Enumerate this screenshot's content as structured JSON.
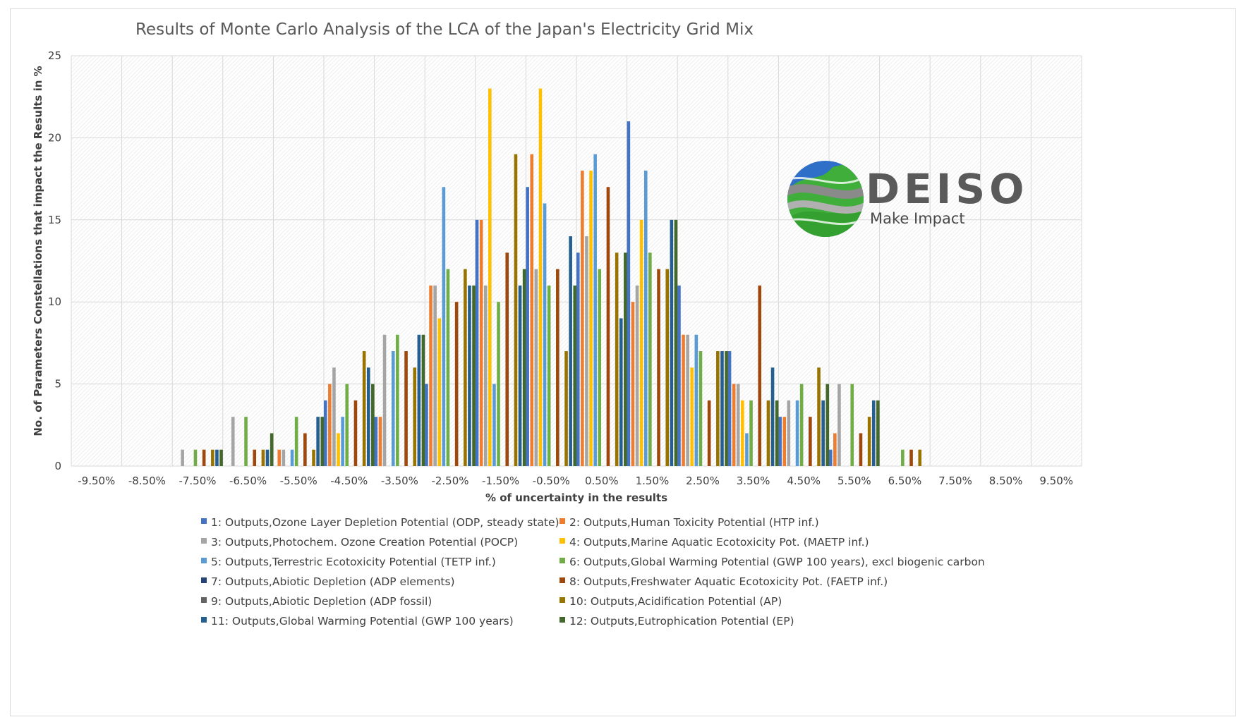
{
  "chart_data": {
    "type": "bar",
    "title": "Results of Monte Carlo Analysis of the LCA of the Japan's Electricity Grid Mix",
    "xlabel": "% of uncertainty in the results",
    "ylabel": "No. of Parameters Constellations that impact the Results in %",
    "ylim": [
      0,
      25
    ],
    "yticks": [
      "0",
      "5",
      "10",
      "15",
      "20",
      "25"
    ],
    "grid": true,
    "legend_position": "bottom",
    "categories": [
      "-9.50%",
      "-8.50%",
      "-7.50%",
      "-6.50%",
      "-5.50%",
      "-4.50%",
      "-3.50%",
      "-2.50%",
      "-1.50%",
      "-0.50%",
      "0.50%",
      "1.50%",
      "2.50%",
      "3.50%",
      "4.50%",
      "5.50%",
      "6.50%",
      "7.50%",
      "8.50%",
      "9.50%"
    ],
    "series": [
      {
        "name": "1: Outputs,Ozone Layer Depletion Potential (ODP, steady state)",
        "color": "#4472C4",
        "values": [
          0,
          0,
          0,
          0,
          0,
          4,
          3,
          5,
          15,
          17,
          13,
          21,
          11,
          7,
          3,
          1,
          0,
          0,
          0,
          0
        ]
      },
      {
        "name": "2: Outputs,Human Toxicity Potential (HTP inf.)",
        "color": "#ED7D31",
        "values": [
          0,
          0,
          0,
          0,
          1,
          5,
          3,
          11,
          15,
          19,
          18,
          10,
          8,
          5,
          3,
          2,
          0,
          0,
          0,
          0
        ]
      },
      {
        "name": "3: Outputs,Photochem. Ozone Creation Potential (POCP)",
        "color": "#A5A5A5",
        "values": [
          0,
          0,
          1,
          3,
          1,
          6,
          8,
          11,
          11,
          12,
          14,
          11,
          8,
          5,
          4,
          5,
          0,
          0,
          0,
          0
        ]
      },
      {
        "name": "4: Outputs,Marine Aquatic Ecotoxicity Pot. (MAETP inf.)",
        "color": "#FFC000",
        "values": [
          0,
          0,
          0,
          0,
          0,
          2,
          0,
          9,
          23,
          23,
          18,
          15,
          6,
          4,
          0,
          0,
          0,
          0,
          0,
          0
        ]
      },
      {
        "name": "5: Outputs,Terrestric Ecotoxicity Potential (TETP inf.)",
        "color": "#5B9BD5",
        "values": [
          0,
          0,
          0,
          0,
          1,
          3,
          7,
          17,
          5,
          16,
          19,
          18,
          8,
          2,
          4,
          0,
          0,
          0,
          0,
          0
        ]
      },
      {
        "name": "6: Outputs,Global Warming Potential (GWP 100 years), excl biogenic carbon",
        "color": "#70AD47",
        "values": [
          0,
          0,
          1,
          3,
          3,
          5,
          8,
          12,
          10,
          11,
          12,
          13,
          7,
          4,
          5,
          5,
          1,
          0,
          0,
          0
        ]
      },
      {
        "name": "7: Outputs,Abiotic Depletion (ADP elements)",
        "color": "#264478",
        "values": [
          0,
          0,
          0,
          0,
          0,
          0,
          0,
          0,
          0,
          0,
          0,
          0,
          0,
          0,
          0,
          0,
          0,
          0,
          0,
          0
        ]
      },
      {
        "name": "8: Outputs,Freshwater Aquatic Ecotoxicity Pot. (FAETP inf.)",
        "color": "#9E480E",
        "values": [
          0,
          0,
          1,
          1,
          2,
          4,
          7,
          10,
          13,
          12,
          17,
          12,
          4,
          11,
          3,
          2,
          1,
          0,
          0,
          0
        ]
      },
      {
        "name": "9: Outputs,Abiotic Depletion (ADP fossil)",
        "color": "#636363",
        "values": [
          0,
          0,
          0,
          0,
          0,
          0,
          0,
          0,
          0,
          0,
          0,
          0,
          0,
          0,
          0,
          0,
          0,
          0,
          0,
          0
        ]
      },
      {
        "name": "10: Outputs,Acidification Potential (AP)",
        "color": "#997300",
        "values": [
          0,
          0,
          1,
          1,
          1,
          7,
          6,
          12,
          19,
          7,
          13,
          12,
          7,
          4,
          6,
          3,
          1,
          0,
          0,
          0
        ]
      },
      {
        "name": "11: Outputs,Global Warming Potential (GWP 100 years)",
        "color": "#255E91",
        "values": [
          0,
          0,
          1,
          1,
          3,
          6,
          8,
          11,
          11,
          14,
          9,
          15,
          7,
          6,
          4,
          4,
          0,
          0,
          0,
          0
        ]
      },
      {
        "name": "12: Outputs,Eutrophication Potential (EP)",
        "color": "#43682B",
        "values": [
          0,
          0,
          1,
          2,
          3,
          5,
          8,
          11,
          12,
          11,
          13,
          15,
          7,
          4,
          5,
          4,
          0,
          0,
          0,
          0
        ]
      }
    ]
  },
  "logo": {
    "word": "DEISO",
    "tagline": "Make Impact",
    "colors": {
      "blue": "#2f6fc8",
      "green": "#3fae3a",
      "gray": "#8a8a8a"
    }
  }
}
